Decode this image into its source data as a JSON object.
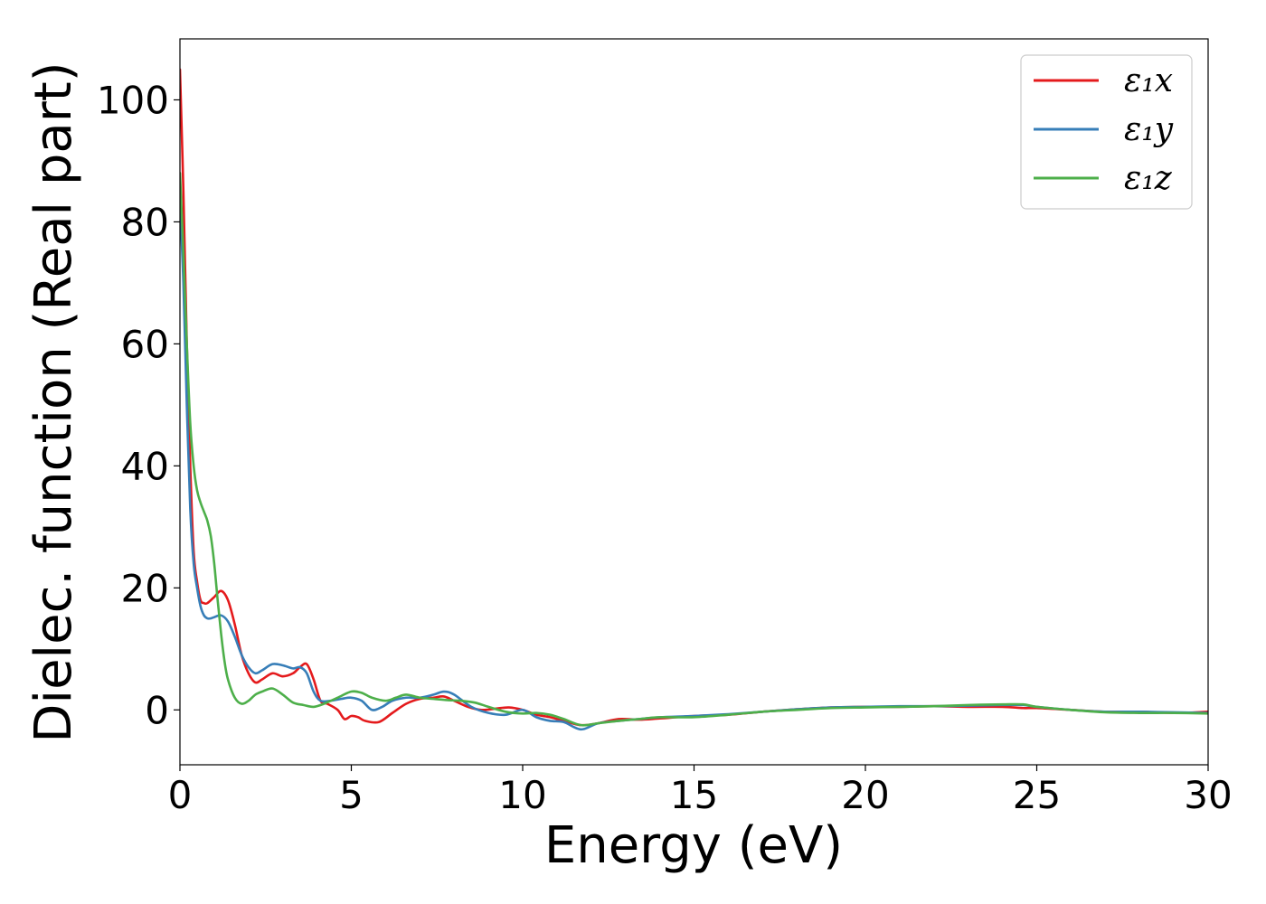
{
  "chart_data": {
    "type": "line",
    "xlabel": "Energy (eV)",
    "ylabel": "Dielec. function (Real part)",
    "xlim": [
      0,
      30
    ],
    "ylim": [
      -9,
      110
    ],
    "xticks": [
      0,
      5,
      10,
      15,
      20,
      25,
      30
    ],
    "yticks": [
      0,
      20,
      40,
      60,
      80,
      100
    ],
    "grid": false,
    "legend_position": "top-right",
    "series": [
      {
        "name": "ε₁x",
        "color": "#e41a1c",
        "x": [
          0,
          0.1,
          0.2,
          0.3,
          0.4,
          0.5,
          0.6,
          0.7,
          0.8,
          1.0,
          1.2,
          1.4,
          1.6,
          1.8,
          2.0,
          2.2,
          2.4,
          2.7,
          3.0,
          3.3,
          3.5,
          3.7,
          3.9,
          4.1,
          4.3,
          4.6,
          4.8,
          5.0,
          5.2,
          5.4,
          5.8,
          6.2,
          6.6,
          7.0,
          7.4,
          7.7,
          8.0,
          8.4,
          8.8,
          9.2,
          9.6,
          10.0,
          10.4,
          10.8,
          11.2,
          11.7,
          12.2,
          12.8,
          13.4,
          14.0,
          15.0,
          16.0,
          17.0,
          18.0,
          19.0,
          20.0,
          21.0,
          22.0,
          23.0,
          24.0,
          24.6,
          25.0,
          26.0,
          27.0,
          28.0,
          29.0,
          30.0
        ],
        "y": [
          105,
          85,
          60,
          40,
          26,
          21,
          18,
          17.5,
          17.5,
          18.5,
          19.5,
          18,
          14,
          9,
          6,
          4.5,
          5,
          6,
          5.5,
          6,
          7,
          7.5,
          5,
          1.5,
          1,
          0,
          -1.5,
          -1,
          -1.2,
          -1.8,
          -2,
          -0.5,
          1,
          1.8,
          2,
          2.2,
          1.5,
          0.5,
          0,
          0.2,
          0.4,
          0,
          -0.8,
          -1.2,
          -1.8,
          -2.5,
          -2.2,
          -1.5,
          -1.6,
          -1.4,
          -1,
          -0.8,
          -0.3,
          0.1,
          0.4,
          0.5,
          0.5,
          0.6,
          0.5,
          0.5,
          0.3,
          0.3,
          0,
          -0.3,
          -0.3,
          -0.5,
          -0.3
        ]
      },
      {
        "name": "ε₁y",
        "color": "#377eb8",
        "x": [
          0,
          0.1,
          0.2,
          0.3,
          0.4,
          0.5,
          0.6,
          0.7,
          0.8,
          0.9,
          1.0,
          1.2,
          1.4,
          1.6,
          1.8,
          2.0,
          2.2,
          2.4,
          2.7,
          3.0,
          3.3,
          3.5,
          3.7,
          3.9,
          4.1,
          4.4,
          4.7,
          5.0,
          5.3,
          5.6,
          5.9,
          6.2,
          6.6,
          7.0,
          7.4,
          7.7,
          8.0,
          8.5,
          9.0,
          9.5,
          10.0,
          10.4,
          10.8,
          11.2,
          11.7,
          12.2,
          12.8,
          13.4,
          14.0,
          15.0,
          16.0,
          17.0,
          18.0,
          19.0,
          20.0,
          21.0,
          22.0,
          23.0,
          24.0,
          24.6,
          25.0,
          26.0,
          27.0,
          28.0,
          29.0,
          30.0
        ],
        "y": [
          83,
          70,
          50,
          33,
          24,
          20,
          17,
          15.5,
          15,
          15,
          15.2,
          15.5,
          14.5,
          12,
          9,
          7,
          6,
          6.5,
          7.5,
          7.3,
          6.8,
          7,
          6,
          3,
          1.5,
          1.5,
          1.8,
          2,
          1.5,
          0,
          0.5,
          1.5,
          2,
          2,
          2.5,
          3,
          2.5,
          0.5,
          -0.5,
          -0.8,
          0,
          -1.2,
          -1.8,
          -2,
          -3.2,
          -2.2,
          -1.8,
          -1.5,
          -1.2,
          -1,
          -0.7,
          -0.3,
          0.1,
          0.4,
          0.5,
          0.6,
          0.6,
          0.7,
          0.8,
          0.8,
          0.5,
          0,
          -0.3,
          -0.3,
          -0.4,
          -0.5
        ]
      },
      {
        "name": "ε₁z",
        "color": "#4daf4a",
        "x": [
          0,
          0.1,
          0.2,
          0.3,
          0.4,
          0.5,
          0.6,
          0.7,
          0.8,
          0.9,
          1.0,
          1.1,
          1.2,
          1.3,
          1.4,
          1.6,
          1.8,
          2.0,
          2.2,
          2.4,
          2.7,
          3.0,
          3.3,
          3.6,
          3.9,
          4.2,
          4.6,
          5.0,
          5.3,
          5.6,
          6.0,
          6.3,
          6.6,
          7.0,
          7.4,
          7.8,
          8.2,
          8.6,
          9.0,
          9.5,
          10.0,
          10.4,
          10.8,
          11.2,
          11.7,
          12.2,
          12.8,
          13.4,
          14.0,
          15.0,
          16.0,
          17.0,
          18.0,
          19.0,
          20.0,
          21.0,
          22.0,
          23.0,
          24.0,
          24.6,
          25.0,
          26.0,
          27.0,
          28.0,
          29.0,
          30.0
        ],
        "y": [
          88,
          75,
          60,
          47,
          40,
          36,
          34,
          32.5,
          31,
          28.5,
          24,
          18,
          12.5,
          8,
          5,
          2,
          1,
          1.5,
          2.5,
          3,
          3.5,
          2.5,
          1.2,
          0.8,
          0.5,
          1,
          2,
          3,
          2.8,
          2,
          1.5,
          2,
          2.5,
          2,
          1.8,
          1.6,
          1.5,
          1.2,
          0.5,
          -0.3,
          -0.6,
          -0.5,
          -0.8,
          -1.5,
          -2.5,
          -2.2,
          -1.8,
          -1.5,
          -1.2,
          -1.2,
          -0.8,
          -0.3,
          0,
          0.3,
          0.4,
          0.5,
          0.6,
          0.8,
          0.9,
          0.9,
          0.5,
          0,
          -0.4,
          -0.5,
          -0.5,
          -0.6
        ]
      }
    ]
  }
}
